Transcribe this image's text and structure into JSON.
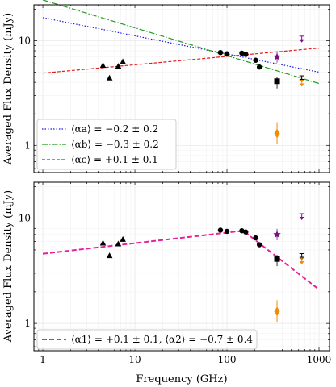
{
  "figure": {
    "xlabel": "Frequency (GHz)",
    "ylabel": "Averaged Flux Density (mJy)"
  },
  "chart_data": [
    {
      "type": "scatter",
      "panel": "top",
      "xlabel": "",
      "ylabel": "Averaged Flux Density (mJy)",
      "xscale": "log",
      "yscale": "log",
      "xlim": [
        0.8,
        1300
      ],
      "ylim": [
        0.55,
        22
      ],
      "y_ticks": [
        {
          "value": 1,
          "label": "1"
        },
        {
          "value": 10,
          "label": "10"
        }
      ],
      "grid": true,
      "legend_position": "lower-left",
      "points": [
        {
          "group": "triangle",
          "color": "#000000",
          "values": [
            [
              4.5,
              5.8
            ],
            [
              5.3,
              4.4
            ],
            [
              6.6,
              5.7
            ],
            [
              7.4,
              6.3
            ]
          ]
        },
        {
          "group": "circle",
          "color": "#000000",
          "values": [
            [
              85,
              7.7
            ],
            [
              100,
              7.5
            ],
            [
              145,
              7.6
            ],
            [
              160,
              7.4
            ],
            [
              205,
              6.5
            ],
            [
              225,
              5.6
            ]
          ]
        },
        {
          "group": "square",
          "color": "#000000",
          "values": [
            [
              350,
              4.1
            ]
          ]
        },
        {
          "group": "star",
          "color": "#7b0f86",
          "values": [
            [
              350,
              7.0
            ]
          ]
        },
        {
          "group": "purple-upper-limit",
          "color": "#7b0f86",
          "values": [
            [
              650,
              10.3
            ]
          ]
        },
        {
          "group": "black-upper-limit",
          "color": "#000000",
          "values": [
            [
              650,
              4.3
            ]
          ]
        },
        {
          "group": "orange-upper-limit",
          "color": "#f58b00",
          "values": [
            [
              650,
              3.9
            ]
          ]
        },
        {
          "group": "orange-diamond",
          "color": "#f58b00",
          "values": [
            [
              350,
              1.3
            ]
          ]
        }
      ],
      "series": [
        {
          "name": "⟨αa⟩ = −0.2 ± 0.2",
          "style": "dotted",
          "color": "#1a1ae6",
          "x": [
            1,
            1000
          ],
          "y": [
            16.6,
            5.0
          ]
        },
        {
          "name": "⟨αb⟩ = −0.3 ± 0.2",
          "style": "dashdot",
          "color": "#1f9a1f",
          "x": [
            1,
            1000
          ],
          "y": [
            24.5,
            3.9
          ]
        },
        {
          "name": "⟨αc⟩ = +0.1 ± 0.1",
          "style": "dashed",
          "color": "#e61a1a",
          "x": [
            1,
            1000
          ],
          "y": [
            4.9,
            8.5
          ]
        }
      ]
    },
    {
      "type": "scatter",
      "panel": "bottom",
      "xlabel": "Frequency (GHz)",
      "ylabel": "Averaged Flux Density (mJy)",
      "xscale": "log",
      "yscale": "log",
      "xlim": [
        0.8,
        1300
      ],
      "ylim": [
        0.55,
        22
      ],
      "x_ticks": [
        {
          "value": 1,
          "label": "1"
        },
        {
          "value": 10,
          "label": "10"
        },
        {
          "value": 100,
          "label": "100"
        },
        {
          "value": 1000,
          "label": "1000"
        }
      ],
      "y_ticks": [
        {
          "value": 1,
          "label": "1"
        },
        {
          "value": 10,
          "label": "10"
        }
      ],
      "grid": true,
      "legend_position": "lower-left",
      "points": [
        {
          "group": "triangle",
          "color": "#000000",
          "values": [
            [
              4.5,
              5.8
            ],
            [
              5.3,
              4.4
            ],
            [
              6.6,
              5.7
            ],
            [
              7.4,
              6.3
            ]
          ]
        },
        {
          "group": "circle",
          "color": "#000000",
          "values": [
            [
              85,
              7.7
            ],
            [
              100,
              7.5
            ],
            [
              145,
              7.6
            ],
            [
              160,
              7.4
            ],
            [
              205,
              6.5
            ],
            [
              225,
              5.6
            ]
          ]
        },
        {
          "group": "square",
          "color": "#000000",
          "values": [
            [
              350,
              4.1
            ]
          ]
        },
        {
          "group": "star",
          "color": "#7b0f86",
          "values": [
            [
              350,
              7.0
            ]
          ]
        },
        {
          "group": "purple-upper-limit",
          "color": "#7b0f86",
          "values": [
            [
              650,
              10.3
            ]
          ]
        },
        {
          "group": "black-upper-limit",
          "color": "#000000",
          "values": [
            [
              650,
              4.3
            ]
          ]
        },
        {
          "group": "orange-upper-limit",
          "color": "#f58b00",
          "values": [
            [
              650,
              3.9
            ]
          ]
        },
        {
          "group": "orange-diamond",
          "color": "#f58b00",
          "values": [
            [
              350,
              1.3
            ]
          ]
        }
      ],
      "series": [
        {
          "name": "⟨α1⟩ = +0.1 ± 0.1, ⟨α2⟩ = −0.7 ± 0.4",
          "style": "dashed",
          "color": "#e8219a",
          "x": [
            1,
            150,
            1000
          ],
          "y": [
            4.6,
            7.6,
            2.1
          ]
        }
      ]
    }
  ]
}
